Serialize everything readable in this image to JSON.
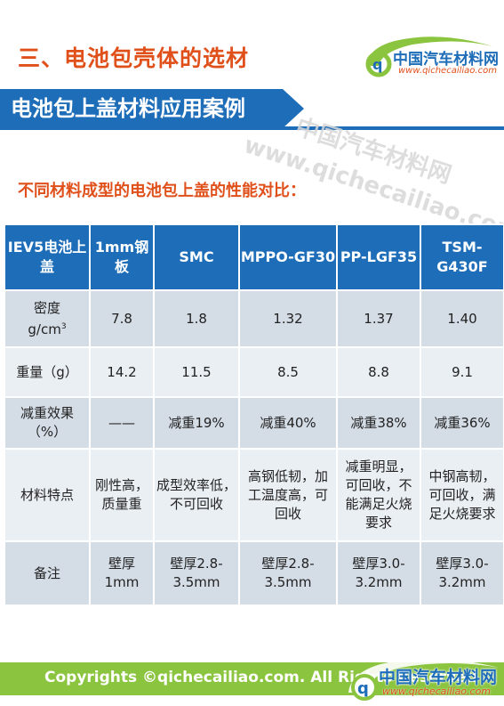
{
  "section_title": "三、电池包壳体的选材",
  "logo": {
    "name": "中国汽车材料网",
    "url": "www.qichecailiao.com"
  },
  "header": {
    "title": "电池包上盖材料应用案例"
  },
  "watermark": {
    "line1": "中国汽车材料网",
    "line2": "www.qichecailiao.com"
  },
  "subtitle": "不同材料成型的电池包上盖的性能对比：",
  "table": {
    "headers": [
      "IEV5电池上盖",
      "1mm钢板",
      "SMC",
      "MPPO-GF30",
      "PP-LGF35",
      "TSM-G430F"
    ],
    "rows": [
      {
        "label": "密度",
        "unit": "g/cm",
        "unit_sup": "3",
        "cells": [
          "7.8",
          "1.8",
          "1.32",
          "1.37",
          "1.40"
        ]
      },
      {
        "label": "重量（g）",
        "cells": [
          "14.2",
          "11.5",
          "8.5",
          "8.8",
          "9.1"
        ]
      },
      {
        "label": "减重效果（%）",
        "cells": [
          "——",
          "减重19%",
          "减重40%",
          "减重38%",
          "减重36%"
        ]
      },
      {
        "label": "材料特点",
        "cells": [
          "刚性高，质量重",
          "成型效率低，不可回收",
          "高钢低韧，加工温度高，可回收",
          "减重明显，可回收，不能满足火烧要求",
          "中钢高韧，可回收，满足火烧要求"
        ]
      },
      {
        "label": "备注",
        "cells": [
          "壁厚1mm",
          "壁厚2.8-3.5mm",
          "壁厚2.8-3.5mm",
          "壁厚3.0-3.2mm",
          "壁厚3.0-3.2mm"
        ]
      }
    ]
  },
  "footer": {
    "copyright": "Copyrights ©qichecailiao.com. All Rights Reserved",
    "logo_name": "中国汽车材料网",
    "logo_url": "www.qichecailiao.com"
  },
  "colors": {
    "accent_orange": "#e0501b",
    "brand_blue": "#1e6db8",
    "footer_green": "#8bc43f",
    "row_dark": "#d4dce6",
    "row_light": "#eaeff4"
  }
}
